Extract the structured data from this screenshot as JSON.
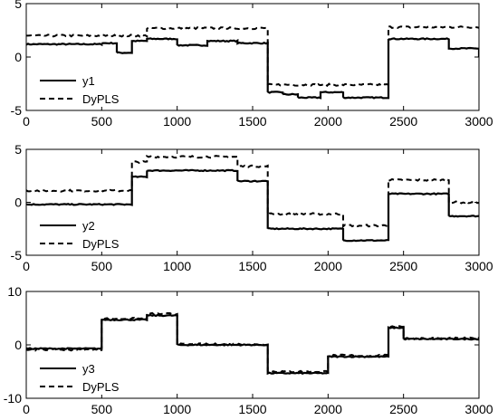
{
  "chart_data": [
    {
      "type": "line",
      "title": "",
      "xlabel": "",
      "ylabel": "",
      "xlim": [
        0,
        3000
      ],
      "ylim": [
        -5,
        5
      ],
      "xticks": [
        0,
        500,
        1000,
        1500,
        2000,
        2500,
        3000
      ],
      "yticks": [
        -5,
        0,
        5
      ],
      "grid": false,
      "legend": "lower-left",
      "series": [
        {
          "name": "y1",
          "style": "solid",
          "color": "#000000",
          "steps": [
            [
              0,
              1.2
            ],
            [
              500,
              1.3
            ],
            [
              600,
              0.4
            ],
            [
              700,
              1.5
            ],
            [
              800,
              1.7
            ],
            [
              1000,
              1.1
            ],
            [
              1200,
              1.5
            ],
            [
              1400,
              1.3
            ],
            [
              1600,
              -3.3
            ],
            [
              1700,
              -3.5
            ],
            [
              1800,
              -3.8
            ],
            [
              1950,
              -3.3
            ],
            [
              2100,
              -3.8
            ],
            [
              2400,
              1.7
            ],
            [
              2800,
              0.8
            ],
            [
              3000,
              0
            ]
          ]
        },
        {
          "name": "DyPLS",
          "style": "dashed",
          "color": "#000000",
          "steps": [
            [
              0,
              2.0
            ],
            [
              800,
              2.7
            ],
            [
              1600,
              -2.6
            ],
            [
              2400,
              2.8
            ],
            [
              3000,
              2.8
            ]
          ]
        }
      ]
    },
    {
      "type": "line",
      "title": "",
      "xlabel": "",
      "ylabel": "",
      "xlim": [
        0,
        3000
      ],
      "ylim": [
        -5,
        5
      ],
      "xticks": [
        0,
        500,
        1000,
        1500,
        2000,
        2500,
        3000
      ],
      "yticks": [
        -5,
        0,
        5
      ],
      "grid": false,
      "legend": "lower-left",
      "series": [
        {
          "name": "y2",
          "style": "solid",
          "color": "#000000",
          "steps": [
            [
              0,
              -0.2
            ],
            [
              700,
              2.4
            ],
            [
              800,
              3.0
            ],
            [
              1400,
              2.0
            ],
            [
              1600,
              -2.5
            ],
            [
              2100,
              -3.6
            ],
            [
              2400,
              0.8
            ],
            [
              2800,
              -1.3
            ],
            [
              3000,
              -1.3
            ]
          ]
        },
        {
          "name": "DyPLS",
          "style": "dashed",
          "color": "#000000",
          "steps": [
            [
              0,
              1.1
            ],
            [
              700,
              3.8
            ],
            [
              800,
              4.3
            ],
            [
              1400,
              3.4
            ],
            [
              1600,
              -1.1
            ],
            [
              2100,
              -2.2
            ],
            [
              2400,
              2.1
            ],
            [
              2800,
              0
            ],
            [
              3000,
              0
            ]
          ]
        }
      ]
    },
    {
      "type": "line",
      "title": "",
      "xlabel": "",
      "ylabel": "",
      "xlim": [
        0,
        3000
      ],
      "ylim": [
        -10,
        10
      ],
      "xticks": [
        0,
        500,
        1000,
        1500,
        2000,
        2500,
        3000
      ],
      "yticks": [
        -10,
        0,
        10
      ],
      "grid": false,
      "legend": "lower-left",
      "series": [
        {
          "name": "y3",
          "style": "solid",
          "color": "#000000",
          "steps": [
            [
              0,
              -0.7
            ],
            [
              500,
              4.7
            ],
            [
              800,
              5.5
            ],
            [
              1000,
              0
            ],
            [
              1600,
              -5.3
            ],
            [
              2000,
              -2.2
            ],
            [
              2400,
              3.2
            ],
            [
              2500,
              1.1
            ],
            [
              3000,
              0.8
            ]
          ]
        },
        {
          "name": "DyPLS",
          "style": "dashed",
          "color": "#000000",
          "steps": [
            [
              0,
              -0.9
            ],
            [
              500,
              4.9
            ],
            [
              800,
              5.8
            ],
            [
              1000,
              0.1
            ],
            [
              1600,
              -5.0
            ],
            [
              2000,
              -2.0
            ],
            [
              2400,
              3.5
            ],
            [
              2500,
              1.2
            ],
            [
              3000,
              1.0
            ]
          ]
        }
      ]
    }
  ]
}
